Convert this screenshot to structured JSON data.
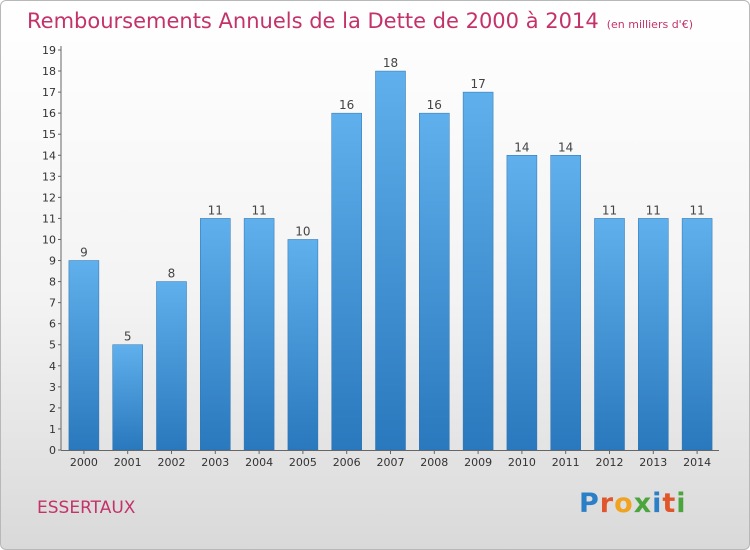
{
  "title": "Remboursements Annuels de la Dette de 2000 à 2014",
  "unit": "(en milliers d'€)",
  "location": "ESSERTAUX",
  "logo": [
    "P",
    "r",
    "o",
    "x",
    "i",
    "t",
    "i"
  ],
  "colors": {
    "title": "#c4326a",
    "bar_top": "#5fb0ec",
    "bar_bottom": "#2a78bd"
  },
  "chart_data": {
    "type": "bar",
    "categories": [
      "2000",
      "2001",
      "2002",
      "2003",
      "2004",
      "2005",
      "2006",
      "2007",
      "2008",
      "2009",
      "2010",
      "2011",
      "2012",
      "2013",
      "2014"
    ],
    "values": [
      9,
      5,
      8,
      11,
      11,
      10,
      16,
      18,
      16,
      17,
      14,
      14,
      11,
      11,
      11
    ],
    "ylim": [
      0,
      19
    ],
    "yticks": [
      0,
      1,
      2,
      3,
      4,
      5,
      6,
      7,
      8,
      9,
      10,
      11,
      12,
      13,
      14,
      15,
      16,
      17,
      18,
      19
    ],
    "grid": false,
    "legend": "none",
    "xlabel": "",
    "ylabel": ""
  }
}
